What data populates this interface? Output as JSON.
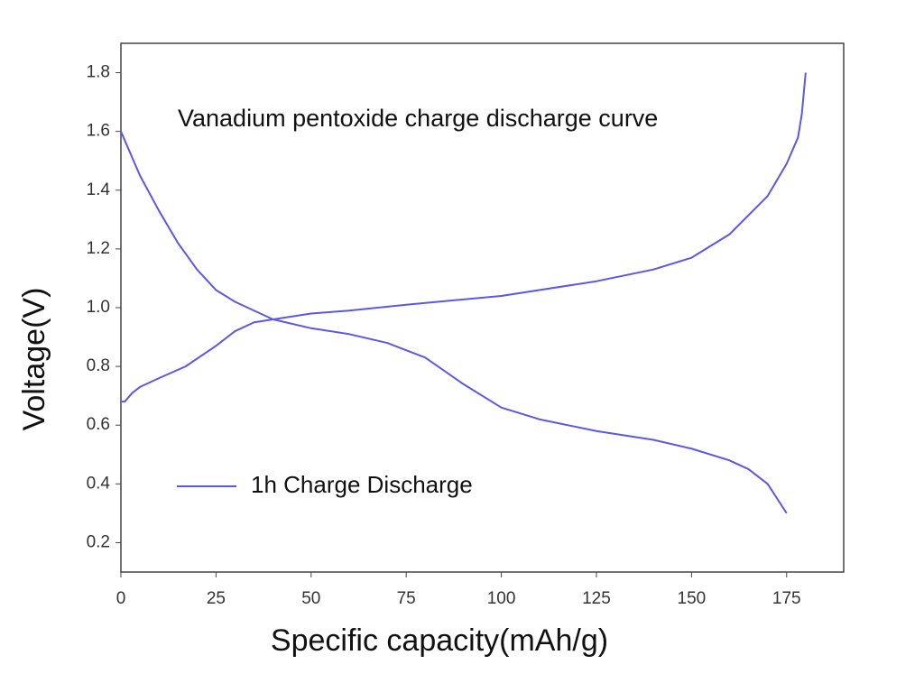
{
  "chart_data": {
    "type": "line",
    "title": "Vanadium pentoxide charge discharge curve",
    "x_label": "Specific capacity(mAh/g)",
    "y_label": "Voltage(V)",
    "xlim": [
      0,
      190
    ],
    "xticks": [
      0,
      25,
      50,
      75,
      100,
      125,
      150,
      175
    ],
    "ylim": [
      0.1,
      1.9
    ],
    "yticks": [
      0.2,
      0.4,
      0.6,
      0.8,
      {
        "value": 1,
        "label": "1.0"
      },
      1.2,
      1.4,
      1.6,
      1.8
    ],
    "grid": false,
    "legend": "lower-left",
    "series": [
      {
        "name": "1h Charge Discharge",
        "color": "#5c58e6",
        "x": [
          0,
          5,
          10,
          15,
          20,
          25,
          30,
          35,
          40,
          50,
          60,
          70,
          80,
          90,
          100,
          110,
          125,
          140,
          150,
          160,
          165,
          170,
          175
        ],
        "values": [
          1.6,
          1.45,
          1.33,
          1.22,
          1.13,
          1.06,
          1.02,
          0.99,
          0.96,
          0.93,
          0.91,
          0.88,
          0.83,
          0.74,
          0.66,
          0.62,
          0.58,
          0.55,
          0.52,
          0.48,
          0.45,
          0.4,
          0.3
        ]
      },
      {
        "color": "#5c58e6",
        "x": [
          0,
          1,
          3,
          5,
          10,
          17,
          25,
          30,
          35,
          40,
          50,
          60,
          75,
          100,
          125,
          140,
          150,
          160,
          170,
          175,
          178,
          179,
          180
        ],
        "values": [
          0.68,
          0.68,
          0.71,
          0.73,
          0.76,
          0.8,
          0.87,
          0.92,
          0.95,
          0.96,
          0.98,
          0.99,
          1.01,
          1.04,
          1.09,
          1.13,
          1.17,
          1.25,
          1.38,
          1.49,
          1.58,
          1.66,
          1.8
        ]
      }
    ]
  }
}
